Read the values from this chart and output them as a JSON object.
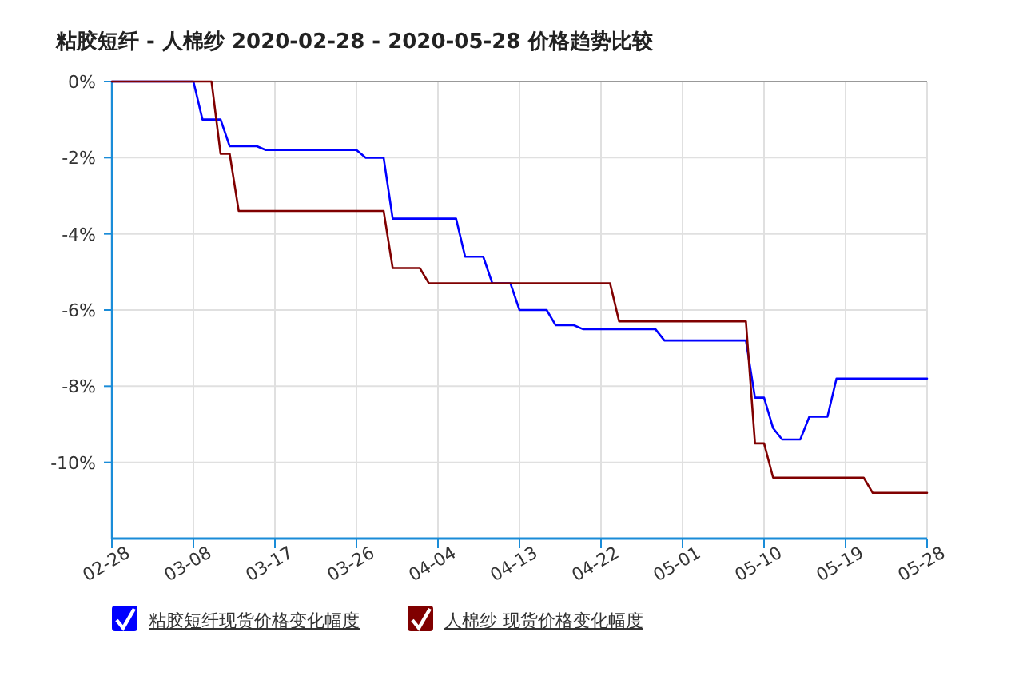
{
  "chart_data": {
    "type": "line",
    "title": "粘胶短纤 - 人棉纱 2020-02-28 - 2020-05-28 价格趋势比较",
    "xlim": [
      "2020-02-28",
      "2020-05-28"
    ],
    "xticks": [
      {
        "value": "2020-02-28",
        "label": "02-28"
      },
      {
        "value": "2020-03-08",
        "label": "03-08"
      },
      {
        "value": "2020-03-17",
        "label": "03-17"
      },
      {
        "value": "2020-03-26",
        "label": "03-26"
      },
      {
        "value": "2020-04-04",
        "label": "04-04"
      },
      {
        "value": "2020-04-13",
        "label": "04-13"
      },
      {
        "value": "2020-04-22",
        "label": "04-22"
      },
      {
        "value": "2020-05-01",
        "label": "05-01"
      },
      {
        "value": "2020-05-10",
        "label": "05-10"
      },
      {
        "value": "2020-05-19",
        "label": "05-19"
      },
      {
        "value": "2020-05-28",
        "label": "05-28"
      }
    ],
    "ylim": [
      -12,
      0
    ],
    "yticks": [
      {
        "value": 0,
        "label": "0%"
      },
      {
        "value": -2,
        "label": "-2%"
      },
      {
        "value": -4,
        "label": "-4%"
      },
      {
        "value": -6,
        "label": "-6%"
      },
      {
        "value": -8,
        "label": "-8%"
      },
      {
        "value": -10,
        "label": "-10%"
      }
    ],
    "grid": true,
    "legend": "bottom",
    "marker": "none",
    "line_style": "solid",
    "series": [
      {
        "name": "粘胶短纤现货价格变化幅度",
        "color": "#0000ff",
        "x": [
          "2020-02-28",
          "2020-03-08",
          "2020-03-09",
          "2020-03-11",
          "2020-03-12",
          "2020-03-15",
          "2020-03-16",
          "2020-03-26",
          "2020-03-27",
          "2020-03-29",
          "2020-03-30",
          "2020-04-06",
          "2020-04-07",
          "2020-04-09",
          "2020-04-10",
          "2020-04-12",
          "2020-04-13",
          "2020-04-16",
          "2020-04-17",
          "2020-04-19",
          "2020-04-20",
          "2020-04-28",
          "2020-04-29",
          "2020-05-08",
          "2020-05-09",
          "2020-05-10",
          "2020-05-11",
          "2020-05-12",
          "2020-05-14",
          "2020-05-15",
          "2020-05-17",
          "2020-05-18",
          "2020-05-28"
        ],
        "values": [
          0,
          0,
          -1.0,
          -1.0,
          -1.7,
          -1.7,
          -1.8,
          -1.8,
          -2.0,
          -2.0,
          -3.6,
          -3.6,
          -4.6,
          -4.6,
          -5.3,
          -5.3,
          -6.0,
          -6.0,
          -6.4,
          -6.4,
          -6.5,
          -6.5,
          -6.8,
          -6.8,
          -8.3,
          -8.3,
          -9.1,
          -9.4,
          -9.4,
          -8.8,
          -8.8,
          -7.8,
          -7.8
        ]
      },
      {
        "name": "人棉纱 现货价格变化幅度",
        "color": "#800000",
        "x": [
          "2020-02-28",
          "2020-03-10",
          "2020-03-11",
          "2020-03-12",
          "2020-03-13",
          "2020-03-29",
          "2020-03-30",
          "2020-04-02",
          "2020-04-03",
          "2020-04-23",
          "2020-04-24",
          "2020-05-08",
          "2020-05-09",
          "2020-05-10",
          "2020-05-11",
          "2020-05-21",
          "2020-05-22",
          "2020-05-28"
        ],
        "values": [
          0,
          0,
          -1.9,
          -1.9,
          -3.4,
          -3.4,
          -4.9,
          -4.9,
          -5.3,
          -5.3,
          -6.3,
          -6.3,
          -9.5,
          -9.5,
          -10.4,
          -10.4,
          -10.8,
          -10.8
        ]
      }
    ]
  }
}
